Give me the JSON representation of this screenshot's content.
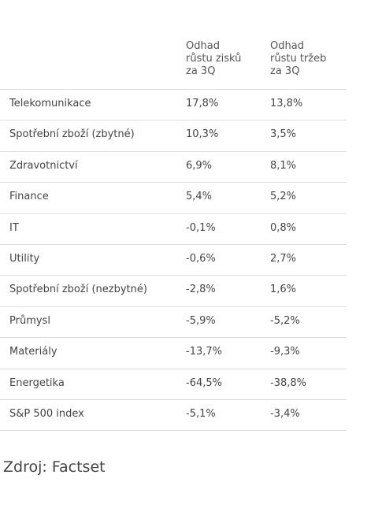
{
  "table": {
    "header": [
      [
        "Odhad",
        "růstu zisků",
        "za 3Q"
      ],
      [
        "Odhad",
        "růstu tržeb",
        "za 3Q"
      ]
    ],
    "rows": [
      [
        "Telekomunikace",
        "17,8%",
        "13,8%"
      ],
      [
        "Spotřební zboží (zbytné)",
        "10,3%",
        "3,5%"
      ],
      [
        "Zdravotnictví",
        "6,9%",
        "8,1%"
      ],
      [
        "Finance",
        "5,4%",
        "5,2%"
      ],
      [
        "IT",
        "-0,1%",
        "0,8%"
      ],
      [
        "Utility",
        "-0,6%",
        "2,7%"
      ],
      [
        "Spotřební zboží (nezbytné)",
        "-2,8%",
        "1,6%"
      ],
      [
        "Průmysl",
        "-5,9%",
        "-5,2%"
      ],
      [
        "Materiály",
        "-13,7%",
        "-9,3%"
      ],
      [
        "Energetika",
        "-64,5%",
        "-38,8%"
      ],
      [
        "S&P 500 index",
        "-5,1%",
        "-3,4%"
      ]
    ]
  },
  "source": "Zdroj: Factset"
}
